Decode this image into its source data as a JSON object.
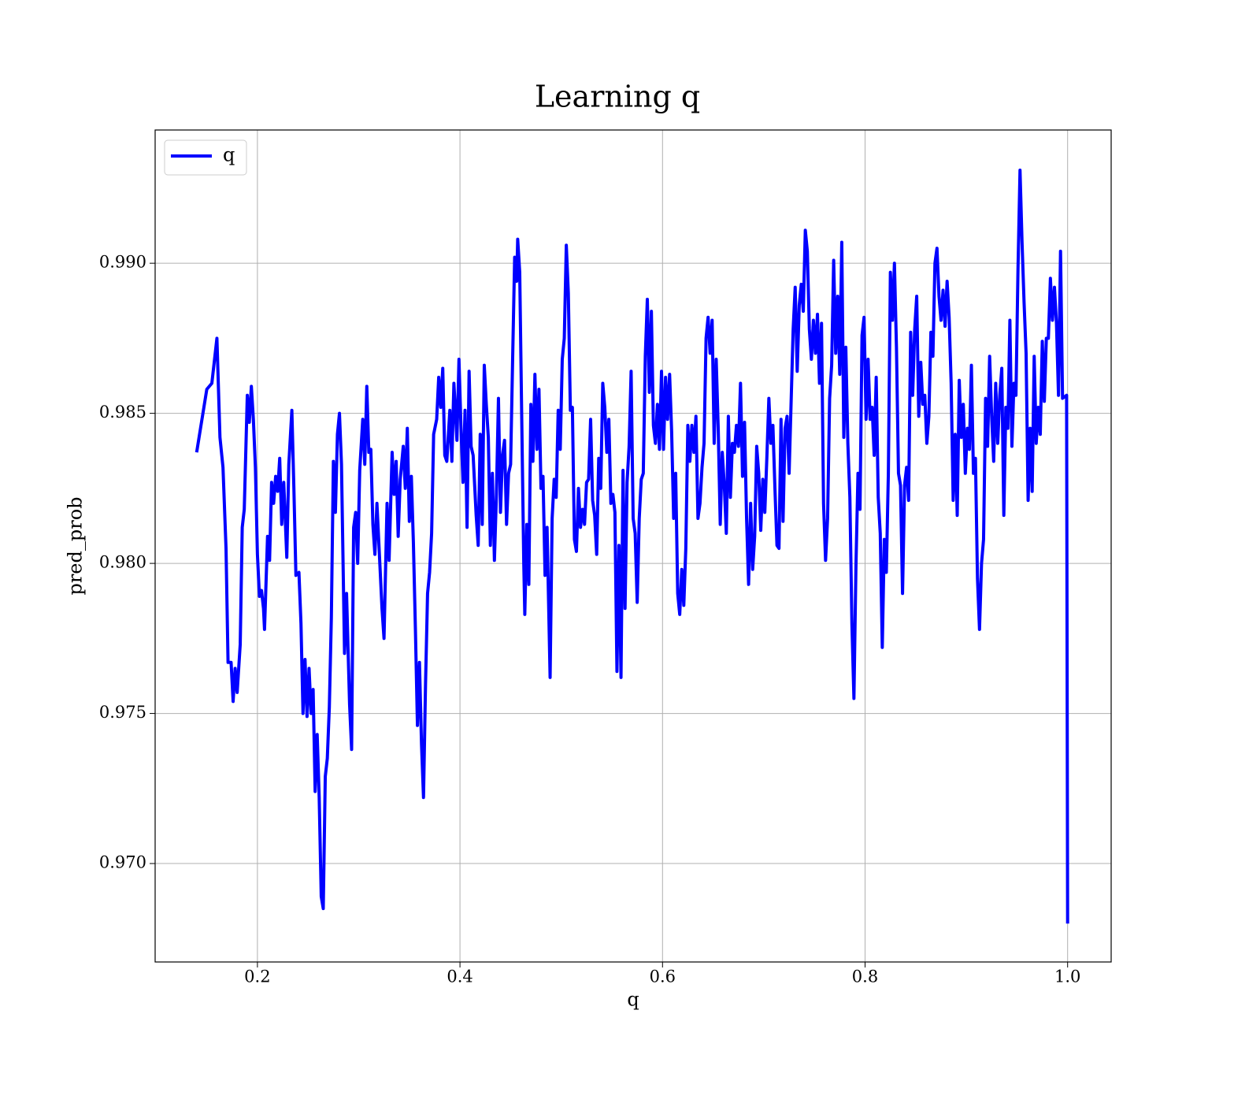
{
  "chart_data": {
    "type": "line",
    "title": "Learning q",
    "xlabel": "q",
    "ylabel": "pred_prob",
    "x": [
      0.14,
      0.15,
      0.155,
      0.16,
      0.163,
      0.166,
      0.169,
      0.171,
      0.174,
      0.176,
      0.178,
      0.18,
      0.183,
      0.185,
      0.187,
      0.19,
      0.192,
      0.194,
      0.196,
      0.198,
      0.2,
      0.202,
      0.204,
      0.206,
      0.207,
      0.21,
      0.212,
      0.214,
      0.216,
      0.218,
      0.22,
      0.222,
      0.224,
      0.226,
      0.229,
      0.231,
      0.234,
      0.236,
      0.238,
      0.241,
      0.243,
      0.245,
      0.247,
      0.249,
      0.251,
      0.253,
      0.255,
      0.257,
      0.259,
      0.261,
      0.263,
      0.265,
      0.267,
      0.269,
      0.271,
      0.273,
      0.275,
      0.277,
      0.279,
      0.281,
      0.283,
      0.286,
      0.288,
      0.291,
      0.293,
      0.295,
      0.297,
      0.299,
      0.301,
      0.304,
      0.306,
      0.308,
      0.31,
      0.312,
      0.314,
      0.316,
      0.318,
      0.321,
      0.323,
      0.325,
      0.328,
      0.33,
      0.333,
      0.335,
      0.337,
      0.339,
      0.341,
      0.344,
      0.346,
      0.348,
      0.35,
      0.352,
      0.354,
      0.356,
      0.358,
      0.36,
      0.362,
      0.364,
      0.366,
      0.368,
      0.37,
      0.372,
      0.374,
      0.377,
      0.379,
      0.381,
      0.383,
      0.385,
      0.387,
      0.39,
      0.392,
      0.394,
      0.397,
      0.399,
      0.401,
      0.403,
      0.405,
      0.407,
      0.409,
      0.411,
      0.413,
      0.416,
      0.418,
      0.42,
      0.422,
      0.424,
      0.426,
      0.428,
      0.43,
      0.432,
      0.434,
      0.436,
      0.438,
      0.44,
      0.442,
      0.444,
      0.446,
      0.448,
      0.45,
      0.452,
      0.454,
      0.456,
      0.457,
      0.459,
      0.461,
      0.463,
      0.464,
      0.466,
      0.468,
      0.47,
      0.472,
      0.474,
      0.476,
      0.478,
      0.48,
      0.482,
      0.484,
      0.486,
      0.489,
      0.491,
      0.493,
      0.495,
      0.497,
      0.499,
      0.501,
      0.503,
      0.505,
      0.507,
      0.509,
      0.511,
      0.513,
      0.515,
      0.517,
      0.519,
      0.521,
      0.523,
      0.525,
      0.527,
      0.529,
      0.531,
      0.533,
      0.535,
      0.537,
      0.539,
      0.541,
      0.543,
      0.545,
      0.547,
      0.549,
      0.551,
      0.553,
      0.555,
      0.557,
      0.559,
      0.561,
      0.563,
      0.565,
      0.567,
      0.569,
      0.571,
      0.573,
      0.575,
      0.577,
      0.579,
      0.581,
      0.583,
      0.585,
      0.587,
      0.589,
      0.591,
      0.593,
      0.595,
      0.597,
      0.599,
      0.601,
      0.603,
      0.605,
      0.607,
      0.609,
      0.611,
      0.613,
      0.615,
      0.617,
      0.619,
      0.621,
      0.623,
      0.625,
      0.627,
      0.629,
      0.631,
      0.633,
      0.635,
      0.637,
      0.639,
      0.641,
      0.643,
      0.645,
      0.647,
      0.649,
      0.651,
      0.653,
      0.655,
      0.657,
      0.659,
      0.661,
      0.663,
      0.665,
      0.667,
      0.669,
      0.671,
      0.673,
      0.675,
      0.677,
      0.679,
      0.681,
      0.683,
      0.685,
      0.687,
      0.689,
      0.691,
      0.693,
      0.695,
      0.697,
      0.699,
      0.701,
      0.703,
      0.705,
      0.707,
      0.709,
      0.711,
      0.713,
      0.715,
      0.717,
      0.719,
      0.721,
      0.723,
      0.725,
      0.727,
      0.729,
      0.731,
      0.733,
      0.735,
      0.737,
      0.739,
      0.741,
      0.743,
      0.745,
      0.747,
      0.749,
      0.751,
      0.753,
      0.755,
      0.757,
      0.759,
      0.761,
      0.763,
      0.765,
      0.767,
      0.769,
      0.771,
      0.773,
      0.775,
      0.777,
      0.779,
      0.781,
      0.783,
      0.785,
      0.787,
      0.789,
      0.791,
      0.793,
      0.795,
      0.797,
      0.799,
      0.801,
      0.803,
      0.805,
      0.807,
      0.809,
      0.811,
      0.813,
      0.815,
      0.817,
      0.819,
      0.821,
      0.823,
      0.825,
      0.827,
      0.829,
      0.831,
      0.833,
      0.835,
      0.837,
      0.839,
      0.841,
      0.843,
      0.845,
      0.847,
      0.849,
      0.851,
      0.853,
      0.855,
      0.857,
      0.859,
      0.861,
      0.863,
      0.865,
      0.867,
      0.869,
      0.871,
      0.873,
      0.875,
      0.877,
      0.879,
      0.881,
      0.883,
      0.885,
      0.887,
      0.889,
      0.891,
      0.893,
      0.895,
      0.897,
      0.899,
      0.901,
      0.903,
      0.905,
      0.907,
      0.909,
      0.911,
      0.913,
      0.915,
      0.917,
      0.919,
      0.921,
      0.923,
      0.925,
      0.927,
      0.929,
      0.931,
      0.933,
      0.935,
      0.937,
      0.939,
      0.941,
      0.943,
      0.945,
      0.947,
      0.949,
      0.951,
      0.953,
      0.955,
      0.957,
      0.959,
      0.961,
      0.963,
      0.965,
      0.967,
      0.969,
      0.971,
      0.973,
      0.975,
      0.977,
      0.979,
      0.981,
      0.983,
      0.985,
      0.987,
      0.989,
      0.991,
      0.993,
      0.995,
      0.999,
      1.0
    ],
    "series": [
      {
        "name": "q",
        "color": "#0000ff",
        "values": [
          0.9837,
          0.9858,
          0.986,
          0.9875,
          0.9842,
          0.9832,
          0.9805,
          0.9767,
          0.9767,
          0.9754,
          0.9765,
          0.9757,
          0.9773,
          0.9812,
          0.9818,
          0.9856,
          0.9847,
          0.9859,
          0.9848,
          0.9832,
          0.9803,
          0.9789,
          0.9791,
          0.9785,
          0.9778,
          0.9809,
          0.9801,
          0.9827,
          0.982,
          0.9829,
          0.9824,
          0.9835,
          0.9813,
          0.9827,
          0.9802,
          0.9833,
          0.9851,
          0.9825,
          0.9796,
          0.9797,
          0.978,
          0.975,
          0.9768,
          0.9749,
          0.9765,
          0.975,
          0.9758,
          0.9724,
          0.9743,
          0.9722,
          0.9689,
          0.9685,
          0.9729,
          0.9735,
          0.9752,
          0.9782,
          0.9834,
          0.9817,
          0.9843,
          0.985,
          0.9833,
          0.977,
          0.979,
          0.9753,
          0.9738,
          0.9812,
          0.9817,
          0.98,
          0.9831,
          0.9848,
          0.9833,
          0.9859,
          0.9837,
          0.9838,
          0.9813,
          0.9803,
          0.982,
          0.9799,
          0.9785,
          0.9775,
          0.982,
          0.9801,
          0.9837,
          0.9823,
          0.9834,
          0.9809,
          0.9828,
          0.9839,
          0.9825,
          0.9845,
          0.9814,
          0.9829,
          0.9807,
          0.9778,
          0.9746,
          0.9767,
          0.974,
          0.9722,
          0.976,
          0.979,
          0.9797,
          0.981,
          0.9843,
          0.9848,
          0.9862,
          0.9852,
          0.9865,
          0.9836,
          0.9834,
          0.9851,
          0.9834,
          0.986,
          0.9841,
          0.9868,
          0.9845,
          0.9827,
          0.9851,
          0.9812,
          0.9864,
          0.9839,
          0.9836,
          0.9816,
          0.9806,
          0.9843,
          0.9813,
          0.9866,
          0.9853,
          0.9842,
          0.9806,
          0.983,
          0.9801,
          0.9823,
          0.9855,
          0.9817,
          0.9836,
          0.9841,
          0.9813,
          0.983,
          0.9833,
          0.9868,
          0.9902,
          0.9894,
          0.9908,
          0.9897,
          0.9848,
          0.98,
          0.9783,
          0.9813,
          0.9793,
          0.9853,
          0.9834,
          0.9863,
          0.9838,
          0.9858,
          0.9825,
          0.9829,
          0.9796,
          0.9812,
          0.9762,
          0.9815,
          0.9828,
          0.9822,
          0.9851,
          0.9838,
          0.9868,
          0.9875,
          0.9906,
          0.989,
          0.9851,
          0.9852,
          0.9808,
          0.9804,
          0.9825,
          0.9812,
          0.9818,
          0.9813,
          0.9827,
          0.9828,
          0.9848,
          0.9821,
          0.9816,
          0.9803,
          0.9835,
          0.9825,
          0.986,
          0.9852,
          0.9837,
          0.9848,
          0.982,
          0.9823,
          0.9817,
          0.9764,
          0.9806,
          0.9762,
          0.9831,
          0.9785,
          0.9827,
          0.9839,
          0.9864,
          0.9815,
          0.981,
          0.9787,
          0.9815,
          0.9828,
          0.983,
          0.9869,
          0.9888,
          0.9857,
          0.9884,
          0.9846,
          0.984,
          0.9853,
          0.9838,
          0.9864,
          0.9838,
          0.9862,
          0.9848,
          0.9863,
          0.9844,
          0.9815,
          0.983,
          0.979,
          0.9783,
          0.9798,
          0.9786,
          0.9805,
          0.9846,
          0.9834,
          0.9846,
          0.9837,
          0.9849,
          0.9815,
          0.982,
          0.9832,
          0.984,
          0.9875,
          0.9882,
          0.987,
          0.9881,
          0.984,
          0.9868,
          0.9845,
          0.9813,
          0.9837,
          0.9826,
          0.981,
          0.9849,
          0.9822,
          0.984,
          0.9837,
          0.9846,
          0.9839,
          0.986,
          0.9829,
          0.9847,
          0.9815,
          0.9793,
          0.982,
          0.9798,
          0.9809,
          0.9839,
          0.983,
          0.9811,
          0.9828,
          0.9817,
          0.9835,
          0.9855,
          0.984,
          0.9846,
          0.9825,
          0.9806,
          0.9805,
          0.9848,
          0.9814,
          0.9845,
          0.9849,
          0.983,
          0.9854,
          0.9878,
          0.9892,
          0.9864,
          0.9886,
          0.9893,
          0.9884,
          0.9911,
          0.9904,
          0.9878,
          0.9868,
          0.9881,
          0.987,
          0.9883,
          0.986,
          0.988,
          0.982,
          0.9801,
          0.9815,
          0.9855,
          0.9866,
          0.9901,
          0.987,
          0.9889,
          0.9863,
          0.9907,
          0.9842,
          0.9872,
          0.984,
          0.9822,
          0.978,
          0.9755,
          0.9799,
          0.983,
          0.9818,
          0.9876,
          0.9882,
          0.9848,
          0.9868,
          0.9848,
          0.9852,
          0.9836,
          0.9862,
          0.9822,
          0.981,
          0.9772,
          0.9808,
          0.9797,
          0.983,
          0.9897,
          0.9881,
          0.99,
          0.9872,
          0.983,
          0.9826,
          0.979,
          0.9826,
          0.9832,
          0.9821,
          0.9877,
          0.9856,
          0.9878,
          0.9889,
          0.9849,
          0.9867,
          0.9853,
          0.9856,
          0.984,
          0.9849,
          0.9877,
          0.9869,
          0.99,
          0.9905,
          0.9889,
          0.9881,
          0.9891,
          0.9879,
          0.9894,
          0.9882,
          0.986,
          0.9821,
          0.9843,
          0.9816,
          0.9861,
          0.9842,
          0.9853,
          0.983,
          0.9845,
          0.9838,
          0.9866,
          0.983,
          0.9835,
          0.9795,
          0.9778,
          0.98,
          0.9808,
          0.9855,
          0.9839,
          0.9869,
          0.9849,
          0.9834,
          0.986,
          0.984,
          0.9856,
          0.9865,
          0.9816,
          0.9852,
          0.9845,
          0.9881,
          0.9839,
          0.986,
          0.9856,
          0.9898,
          0.9931,
          0.9907,
          0.9887,
          0.987,
          0.9821,
          0.9845,
          0.9824,
          0.9869,
          0.984,
          0.9852,
          0.9843,
          0.9874,
          0.9854,
          0.9875,
          0.9875,
          0.9895,
          0.9881,
          0.9892,
          0.988,
          0.9856,
          0.9904,
          0.9855,
          0.9856,
          0.968
        ]
      }
    ],
    "xlim": [
      0.099,
      1.043
    ],
    "ylim": [
      0.96672,
      0.99444
    ],
    "xticks": [
      0.2,
      0.4,
      0.6,
      0.8,
      {
        "value": 1,
        "label": "1.0"
      }
    ],
    "yticks": [
      {
        "value": 0.97,
        "label": "0.970"
      },
      0.975,
      {
        "value": 0.98,
        "label": "0.980"
      },
      0.985,
      {
        "value": 0.99,
        "label": "0.990"
      }
    ],
    "grid": true,
    "legend": "upper left"
  }
}
